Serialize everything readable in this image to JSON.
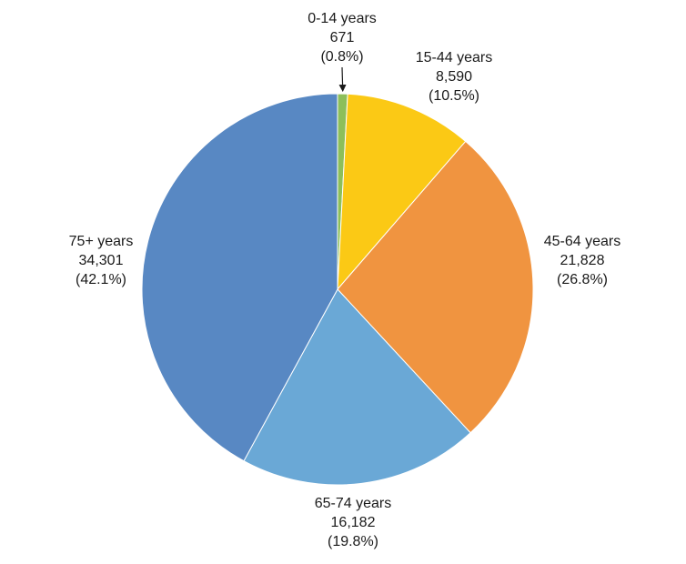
{
  "chart_data": {
    "type": "pie",
    "start_angle_deg": 0,
    "direction": "clockwise",
    "slices": [
      {
        "label": "0-14 years",
        "value": 671,
        "value_text": "671",
        "percent_text": "(0.8%)",
        "color": "#8DBF5A"
      },
      {
        "label": "15-44 years",
        "value": 8590,
        "value_text": "8,590",
        "percent_text": "(10.5%)",
        "color": "#FBC915"
      },
      {
        "label": "45-64 years",
        "value": 21828,
        "value_text": "21,828",
        "percent_text": "(26.8%)",
        "color": "#F09440"
      },
      {
        "label": "65-74 years",
        "value": 16182,
        "value_text": "16,182",
        "percent_text": "(19.8%)",
        "color": "#6AA8D6"
      },
      {
        "label": "75+ years",
        "value": 34301,
        "value_text": "34,301",
        "percent_text": "(42.1%)",
        "color": "#5888C3"
      }
    ]
  }
}
